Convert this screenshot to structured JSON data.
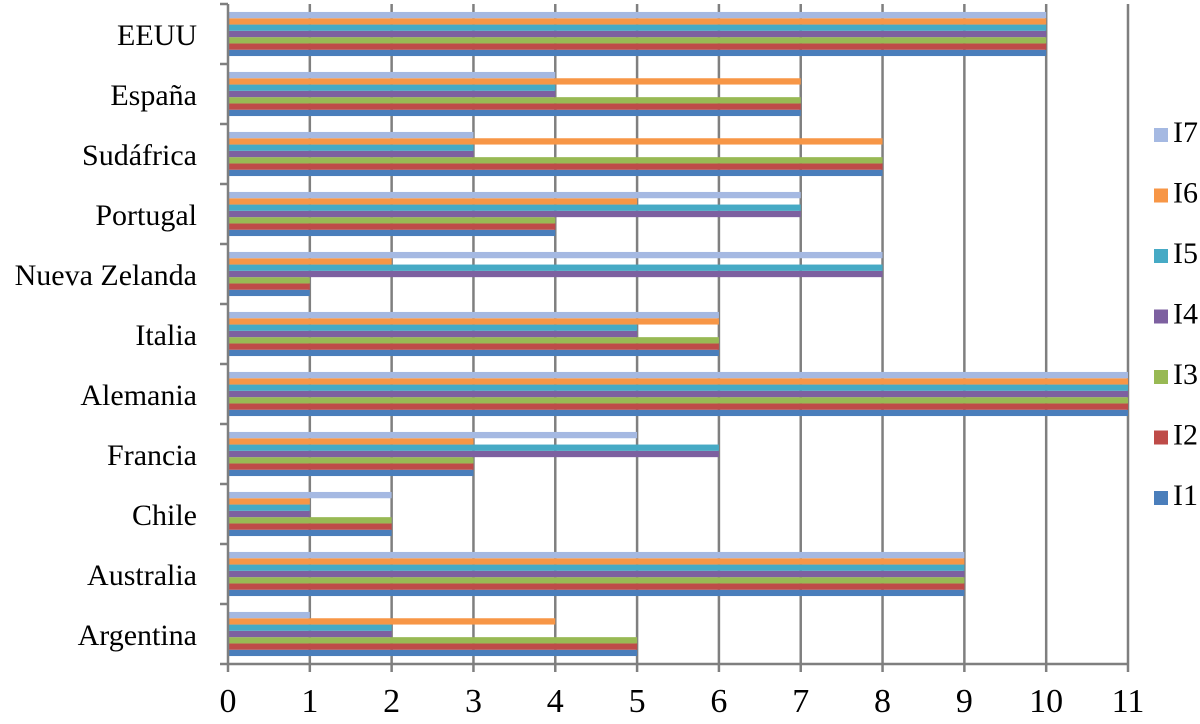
{
  "chart_data": {
    "type": "bar",
    "orientation": "horizontal",
    "categories": [
      "Argentina",
      "Australia",
      "Chile",
      "Francia",
      "Alemania",
      "Italia",
      "Nueva Zelanda",
      "Portugal",
      "Sudáfrica",
      "España",
      "EEUU"
    ],
    "series": [
      {
        "name": "I1",
        "color": "#4A7EBB",
        "values": [
          5,
          9,
          2,
          3,
          11,
          6,
          1,
          4,
          8,
          7,
          10
        ]
      },
      {
        "name": "I2",
        "color": "#BE4B48",
        "values": [
          5,
          9,
          2,
          3,
          11,
          6,
          1,
          4,
          8,
          7,
          10
        ]
      },
      {
        "name": "I3",
        "color": "#98B954",
        "values": [
          5,
          9,
          2,
          3,
          11,
          6,
          1,
          4,
          8,
          7,
          10
        ]
      },
      {
        "name": "I4",
        "color": "#7D60A0",
        "values": [
          2,
          9,
          1,
          6,
          11,
          5,
          8,
          7,
          3,
          4,
          10
        ]
      },
      {
        "name": "I5",
        "color": "#46AAC5",
        "values": [
          2,
          9,
          1,
          6,
          11,
          5,
          8,
          7,
          3,
          4,
          10
        ]
      },
      {
        "name": "I6",
        "color": "#F79646",
        "values": [
          4,
          9,
          1,
          3,
          11,
          6,
          2,
          5,
          8,
          7,
          10
        ]
      },
      {
        "name": "I7",
        "color": "#A5B9E2",
        "values": [
          1,
          9,
          2,
          5,
          11,
          6,
          8,
          7,
          3,
          4,
          10
        ]
      }
    ],
    "xlim": [
      0,
      11
    ],
    "xticks": [
      "0",
      "1",
      "2",
      "3",
      "4",
      "5",
      "6",
      "7",
      "8",
      "9",
      "10",
      "11"
    ],
    "grid": true,
    "legend": "right"
  }
}
